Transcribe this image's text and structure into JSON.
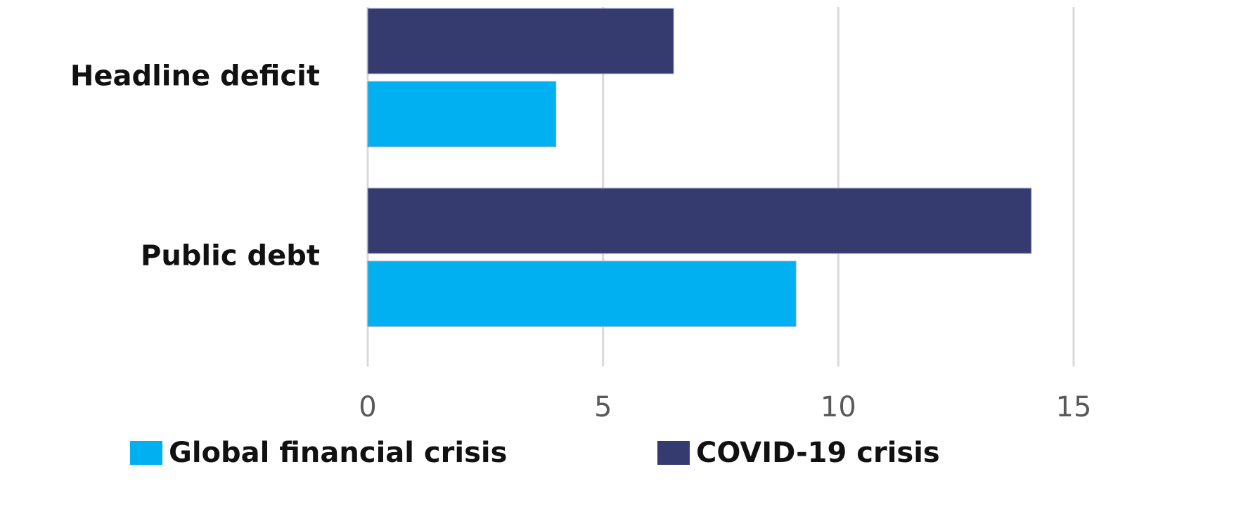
{
  "chart_data": {
    "type": "hbar",
    "categories": [
      "Headline deficit",
      "Public debt"
    ],
    "series": [
      {
        "name": "Global financial crisis",
        "color": "#00b0f0",
        "values": [
          4.0,
          9.1
        ]
      },
      {
        "name": "COVID-19 crisis",
        "color": "#363b6f",
        "values": [
          6.5,
          14.1
        ]
      }
    ],
    "xlim": [
      0,
      15
    ],
    "xticks": [
      0,
      5,
      10,
      15
    ],
    "grid": true,
    "legend": "bottom"
  }
}
